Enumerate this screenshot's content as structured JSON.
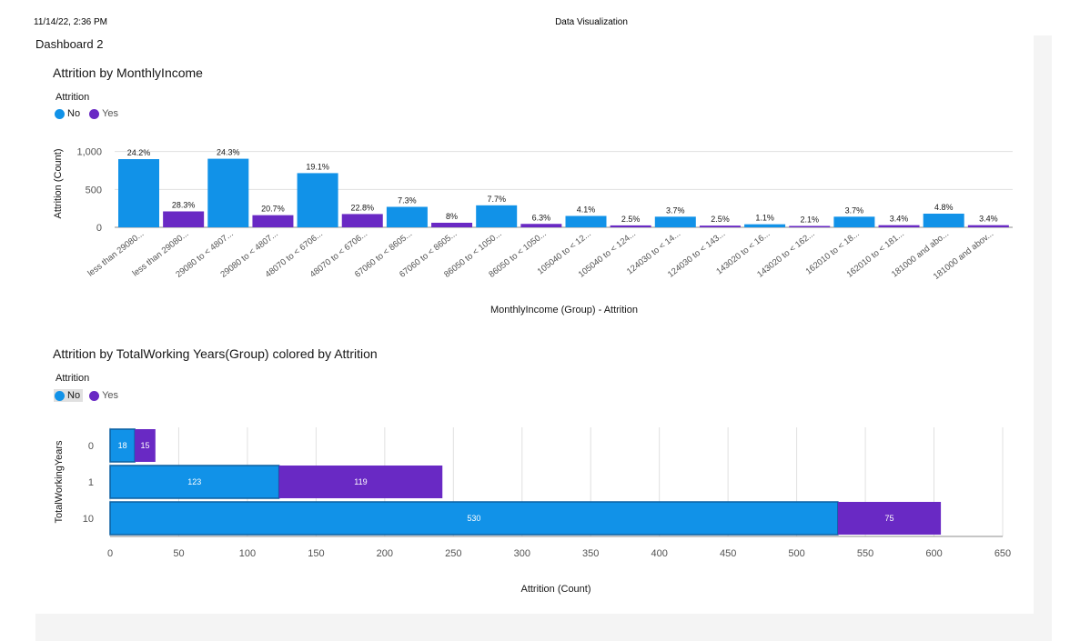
{
  "header": {
    "date": "11/14/22, 2:36 PM",
    "title": "Data Visualization"
  },
  "dashboard": {
    "title": "Dashboard 2"
  },
  "colors": {
    "no": "#1192e8",
    "yes": "#6929c4",
    "grid": "#e0e0e0",
    "axis": "#8d8d8d"
  },
  "legend": {
    "title": "Attrition",
    "items": [
      {
        "label": "No",
        "color": "#1192e8"
      },
      {
        "label": "Yes",
        "color": "#6929c4"
      }
    ]
  },
  "chart_data": [
    {
      "type": "bar",
      "title": "Attrition by MonthlyIncome",
      "xlabel": "MonthlyIncome (Group) - Attrition",
      "ylabel": "Attrition (Count)",
      "ylim": [
        0,
        1200
      ],
      "yticks": [
        0,
        500,
        1000
      ],
      "ytick_labels": [
        "0",
        "500",
        "1,000"
      ],
      "grid": true,
      "legend_placement": "top-left",
      "categories": [
        "less than 29080...",
        "less than 29080...",
        "29080 to < 4807...",
        "29080 to < 4807...",
        "48070 to < 6706...",
        "48070 to < 6706...",
        "67060 to < 8605...",
        "67060 to < 8605...",
        "86050 to < 1050...",
        "86050 to < 1050...",
        "105040 to < 12...",
        "105040 to < 124...",
        "124030 to < 14...",
        "124030 to < 143...",
        "143020 to < 16...",
        "143020 to < 162...",
        "162010 to < 18...",
        "162010 to < 181...",
        "181000 and abo...",
        "181000 and abov..."
      ],
      "series_of_bar": [
        "No",
        "Yes",
        "No",
        "Yes",
        "No",
        "Yes",
        "No",
        "Yes",
        "No",
        "Yes",
        "No",
        "Yes",
        "No",
        "Yes",
        "No",
        "Yes",
        "No",
        "Yes",
        "No",
        "Yes"
      ],
      "values": [
        900,
        210,
        905,
        160,
        715,
        175,
        270,
        60,
        290,
        45,
        150,
        25,
        140,
        22,
        40,
        18,
        140,
        28,
        180,
        28
      ],
      "data_labels": [
        "24.2%",
        "28.3%",
        "24.3%",
        "20.7%",
        "19.1%",
        "22.8%",
        "7.3%",
        "8%",
        "7.7%",
        "6.3%",
        "4.1%",
        "2.5%",
        "3.7%",
        "2.5%",
        "1.1%",
        "2.1%",
        "3.7%",
        "3.4%",
        "4.8%",
        "3.4%"
      ]
    },
    {
      "type": "bar",
      "orientation": "horizontal",
      "stacked": true,
      "title": "Attrition by TotalWorking Years(Group) colored by Attrition",
      "xlabel": "Attrition (Count)",
      "ylabel": "TotalWorkingYears",
      "xlim": [
        0,
        650
      ],
      "xticks": [
        0,
        50,
        100,
        150,
        200,
        250,
        300,
        350,
        400,
        450,
        500,
        550,
        600,
        650
      ],
      "grid": true,
      "legend_placement": "top-left",
      "categories": [
        "0",
        "1",
        "10"
      ],
      "series": [
        {
          "name": "No",
          "values": [
            18,
            123,
            530
          ],
          "labels": [
            "18",
            "123",
            "530"
          ]
        },
        {
          "name": "Yes",
          "values": [
            15,
            119,
            75
          ],
          "labels": [
            "15",
            "119",
            "75"
          ]
        }
      ]
    }
  ]
}
